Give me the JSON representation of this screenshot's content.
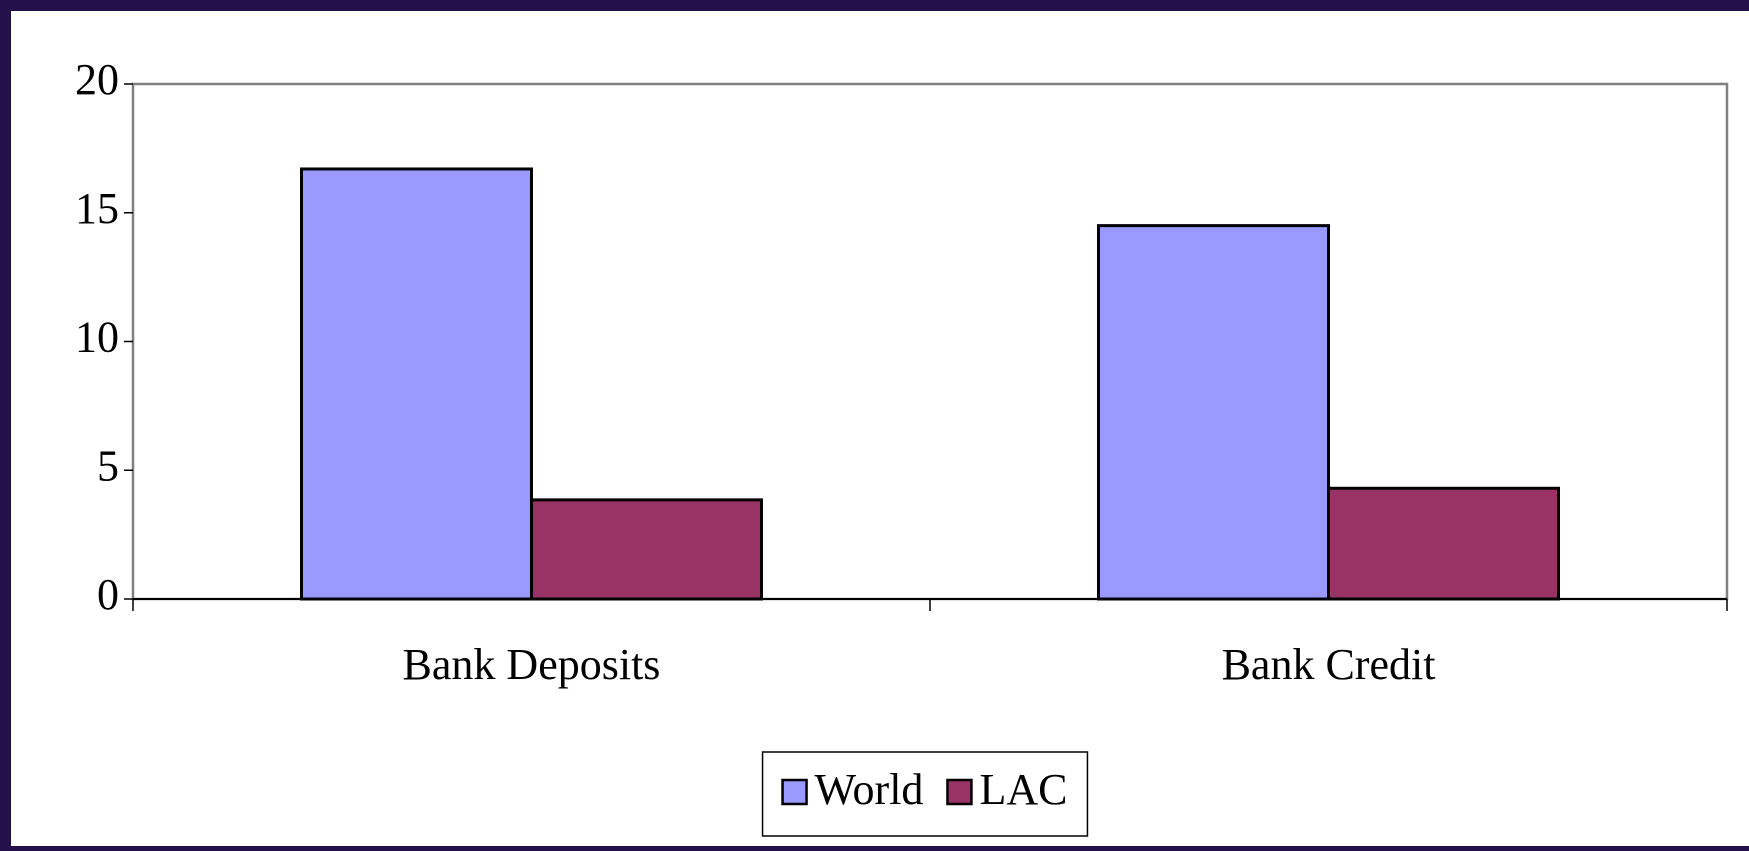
{
  "chart_data": {
    "type": "bar",
    "categories": [
      "Bank Deposits",
      "Bank Credit"
    ],
    "series": [
      {
        "name": "World",
        "color": "#9999ff",
        "values": [
          16.7,
          14.5
        ]
      },
      {
        "name": "LAC",
        "color": "#993366",
        "values": [
          3.85,
          4.3
        ]
      }
    ],
    "ylim": [
      0,
      20
    ],
    "yticks": [
      0,
      5,
      10,
      15,
      20
    ],
    "grid": false,
    "legend": "bottom"
  }
}
